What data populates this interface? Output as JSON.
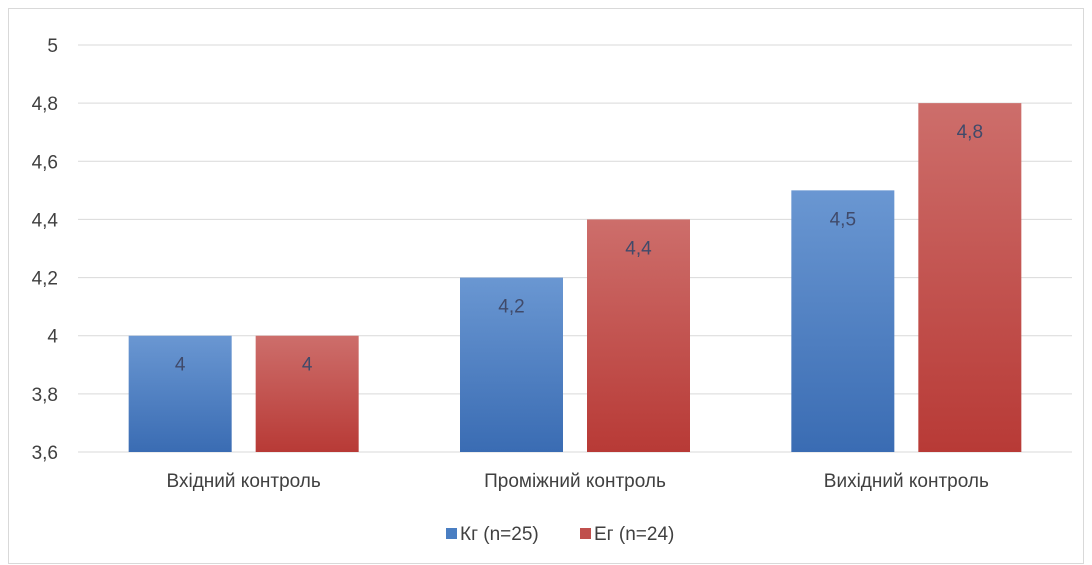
{
  "chart_data": {
    "type": "bar",
    "title": "",
    "xlabel": "",
    "ylabel": "",
    "categories": [
      "Вхідний контроль",
      "Проміжний контроль",
      "Вихідний контроль"
    ],
    "series": [
      {
        "name": "Кг (n=25)",
        "values": [
          4,
          4.2,
          4.5
        ],
        "data_labels": [
          "4",
          "4,2",
          "4,5"
        ],
        "color": "#4a7ec2"
      },
      {
        "name": "Ег (n=24)",
        "values": [
          4,
          4.4,
          4.8
        ],
        "data_labels": [
          "4",
          "4,4",
          "4,8"
        ],
        "color": "#c0504d"
      }
    ],
    "ylim": [
      3.6,
      5
    ],
    "yticks": [
      3.6,
      3.8,
      4,
      4.2,
      4.4,
      4.6,
      4.8,
      5
    ],
    "ytick_labels": [
      "3,6",
      "3,8",
      "4",
      "4,2",
      "4,4",
      "4,6",
      "4,8",
      "5"
    ],
    "grid": true,
    "legend_position": "bottom"
  }
}
